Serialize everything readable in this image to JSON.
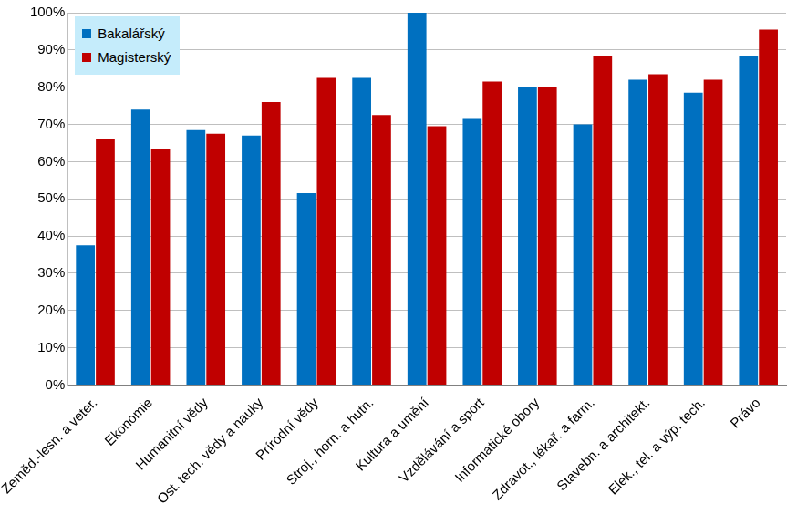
{
  "chart_data": {
    "type": "bar",
    "categories": [
      "Zeměd.-lesn. a veter.",
      "Ekonomie",
      "Humanitní vědy",
      "Ost. tech. vědy a nauky",
      "Přírodní vědy",
      "Stroj., horn. a hutn.",
      "Kultura a umění",
      "Vzdělávání a sport",
      "Informatické obory",
      "Zdravot., lékař. a farm.",
      "Stavebn. a architekt.",
      "Elek., tel. a výp. tech.",
      "Právo"
    ],
    "series": [
      {
        "name": "Bakalářský",
        "color": "#0070c0",
        "values": [
          37.5,
          74,
          68.5,
          67,
          51.5,
          82.5,
          100,
          71.5,
          80,
          70,
          82,
          78.5,
          88.5
        ]
      },
      {
        "name": "Magisterský",
        "color": "#c00000",
        "values": [
          66,
          63.5,
          67.5,
          76,
          82.5,
          72.5,
          69.5,
          81.5,
          80,
          88.5,
          83.5,
          82,
          95.5
        ]
      }
    ],
    "ylim": [
      0,
      100
    ],
    "yticks": [
      {
        "value": 0,
        "label": "0%"
      },
      {
        "value": 10,
        "label": "10%"
      },
      {
        "value": 20,
        "label": "20%"
      },
      {
        "value": 30,
        "label": "30%"
      },
      {
        "value": 40,
        "label": "40%"
      },
      {
        "value": 50,
        "label": "50%"
      },
      {
        "value": 60,
        "label": "60%"
      },
      {
        "value": 70,
        "label": "70%"
      },
      {
        "value": 80,
        "label": "80%"
      },
      {
        "value": 90,
        "label": "90%"
      },
      {
        "value": 100,
        "label": "100%"
      }
    ],
    "grid": true,
    "legend": "upper left"
  }
}
